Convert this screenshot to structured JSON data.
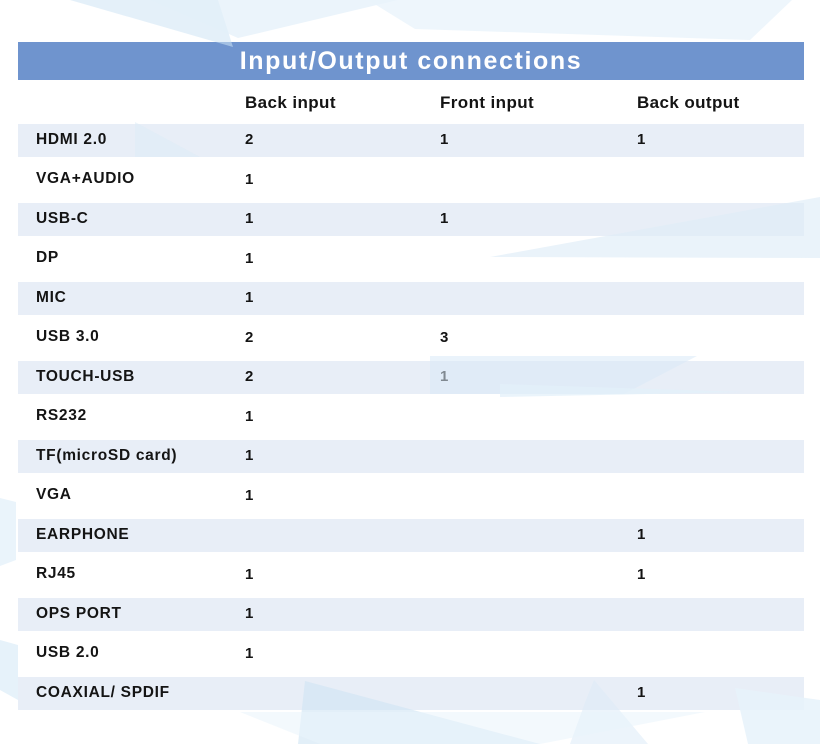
{
  "title": "Input/Output connections",
  "colors": {
    "title_bar": "#6f94ce",
    "row_shaded": "#e8eef7",
    "text": "#141414",
    "watermark_light": "#e6f2fa",
    "watermark_mid": "#cde3f4"
  },
  "table": {
    "columns": [
      "Back input",
      "Front input",
      "Back output"
    ],
    "rows": [
      {
        "label": "HDMI 2.0",
        "back_input": "2",
        "front_input": "1",
        "back_output": "1"
      },
      {
        "label": "VGA+AUDIO",
        "back_input": "1",
        "front_input": "",
        "back_output": ""
      },
      {
        "label": "USB-C",
        "back_input": "1",
        "front_input": "1",
        "back_output": ""
      },
      {
        "label": "DP",
        "back_input": "1",
        "front_input": "",
        "back_output": ""
      },
      {
        "label": "MIC",
        "back_input": "1",
        "front_input": "",
        "back_output": ""
      },
      {
        "label": "USB 3.0",
        "back_input": "2",
        "front_input": "3",
        "back_output": ""
      },
      {
        "label": "TOUCH-USB",
        "back_input": "2",
        "front_input": "1",
        "back_output": ""
      },
      {
        "label": "RS232",
        "back_input": "1",
        "front_input": "",
        "back_output": ""
      },
      {
        "label": "TF(microSD card)",
        "back_input": "1",
        "front_input": "",
        "back_output": ""
      },
      {
        "label": "VGA",
        "back_input": "1",
        "front_input": "",
        "back_output": ""
      },
      {
        "label": "EARPHONE",
        "back_input": "",
        "front_input": "",
        "back_output": "1"
      },
      {
        "label": "RJ45",
        "back_input": "1",
        "front_input": "",
        "back_output": "1"
      },
      {
        "label": "OPS PORT",
        "back_input": "1",
        "front_input": "",
        "back_output": ""
      },
      {
        "label": "USB 2.0",
        "back_input": "1",
        "front_input": "",
        "back_output": ""
      },
      {
        "label": "COAXIAL/ SPDIF",
        "back_input": "",
        "front_input": "",
        "back_output": "1"
      }
    ]
  }
}
